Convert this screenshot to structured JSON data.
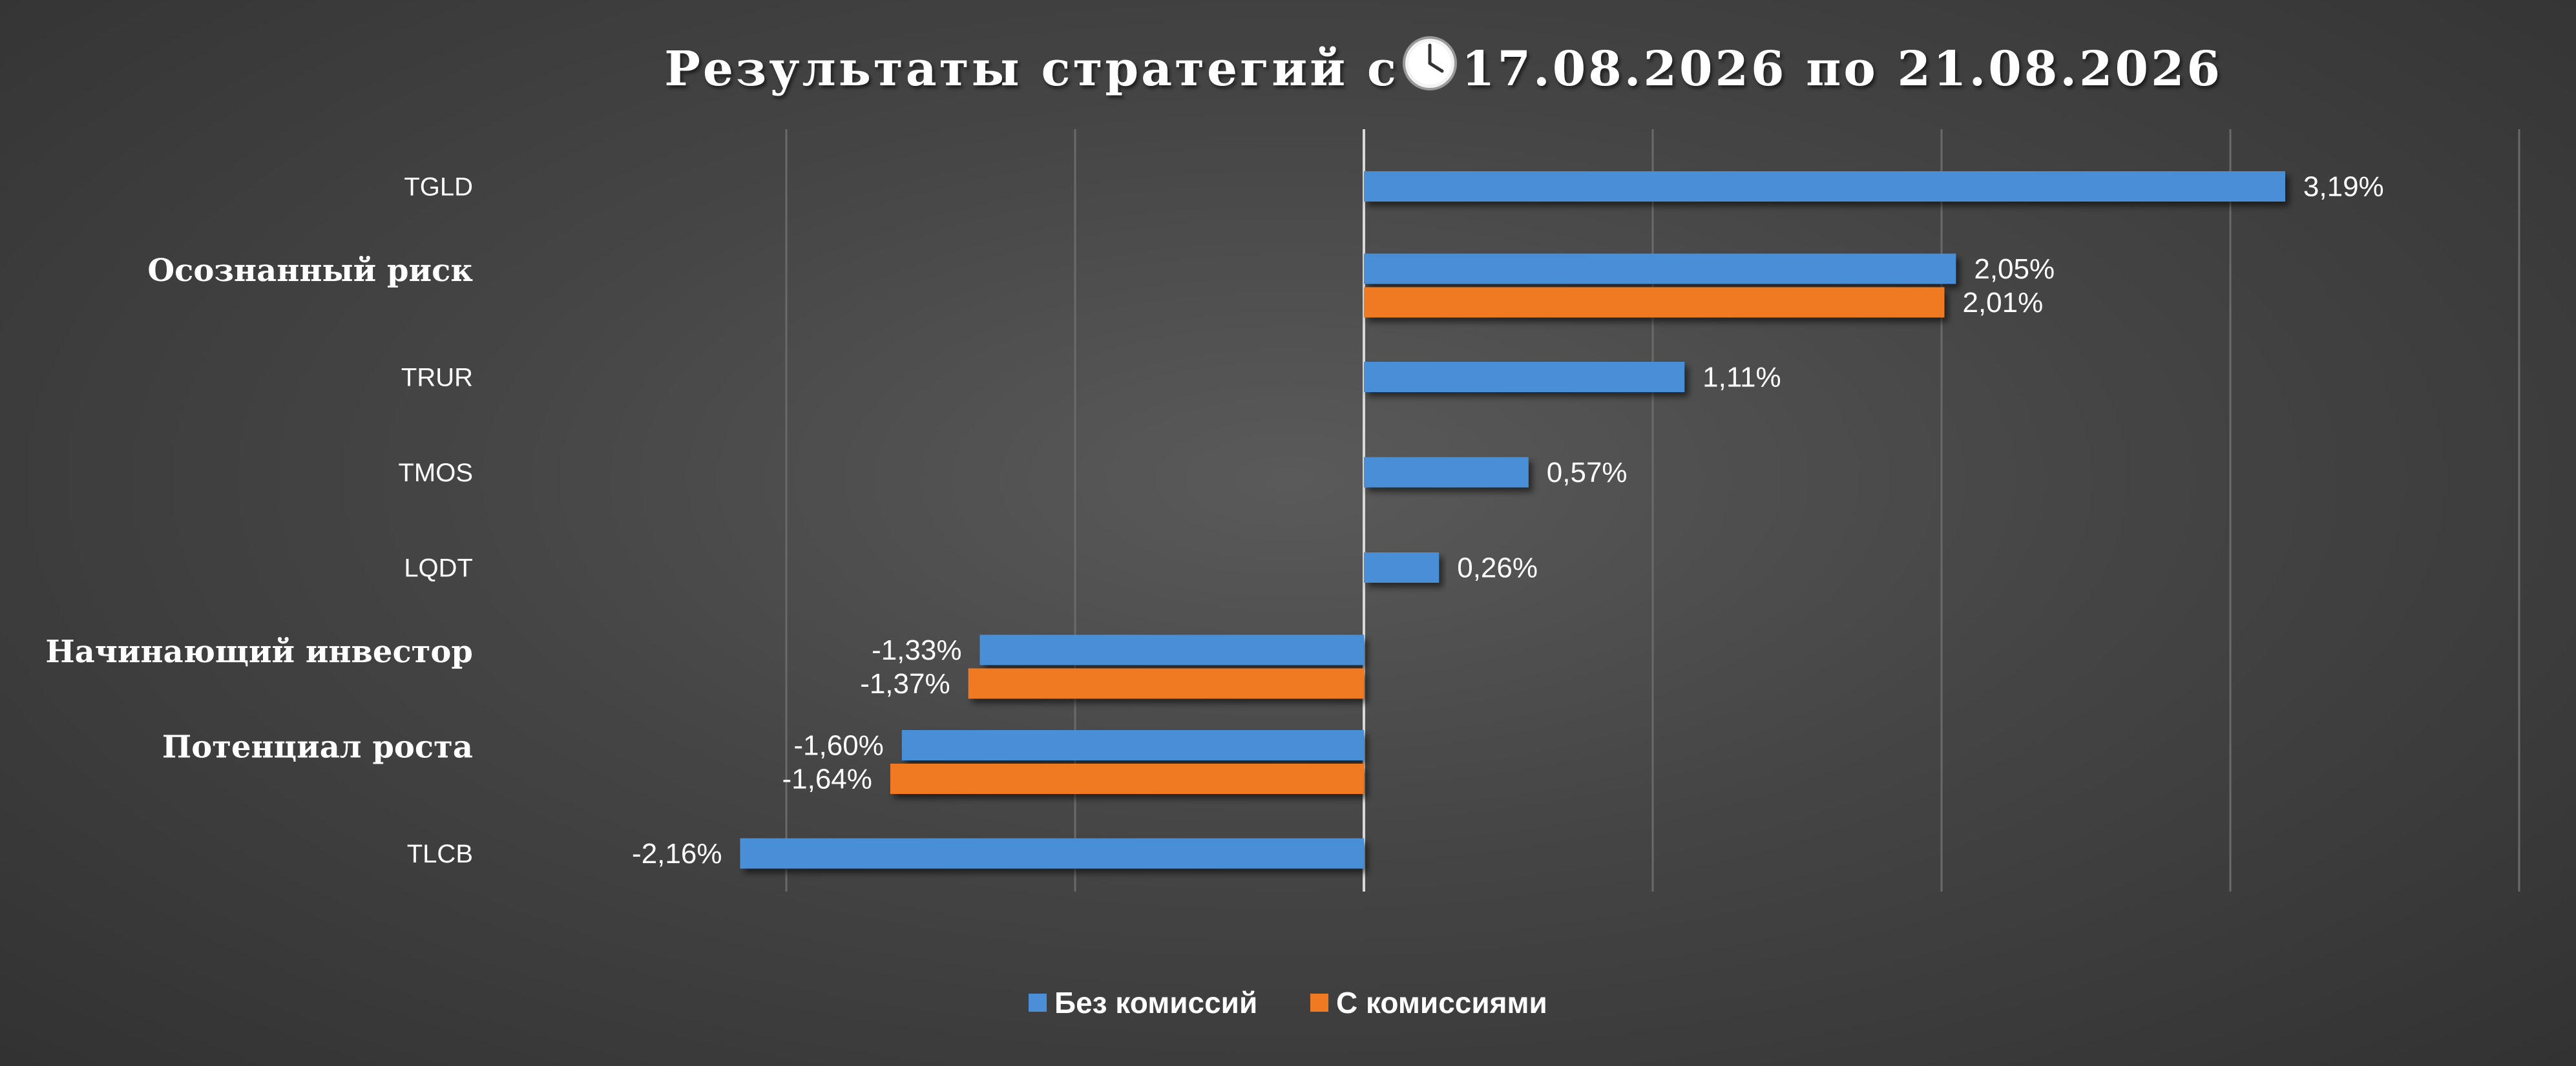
{
  "chart_data": {
    "type": "bar",
    "orientation": "horizontal",
    "title_prefix": "Результаты стратегий с ",
    "title_suffix": "17.08.2026 по 21.08.2026",
    "title_icon": "clock-icon",
    "categories": [
      "TGLD",
      "Осознанный риск",
      "TRUR",
      "TMOS",
      "LQDT",
      "Начинающий инвестор",
      "Потенциал роста ",
      "TLCB"
    ],
    "category_is_strategy": [
      false,
      true,
      false,
      false,
      false,
      true,
      true,
      false
    ],
    "series": [
      {
        "name": "Без комиссий",
        "color": "#4a8fd8",
        "values": [
          3.19,
          2.05,
          1.11,
          0.57,
          0.26,
          -1.33,
          -1.6,
          -2.16
        ],
        "labels": [
          "3,19%",
          "2,05%",
          "1,11%",
          "0,57%",
          "0,26%",
          "-1,33%",
          "-1,60%",
          "-2,16%"
        ]
      },
      {
        "name": "С комиссиями",
        "color": "#f07a22",
        "values": [
          null,
          2.01,
          null,
          null,
          null,
          -1.37,
          -1.64,
          null
        ],
        "labels": [
          null,
          "2,01%",
          null,
          null,
          null,
          "-1,37%",
          "-1,64%",
          null
        ]
      }
    ],
    "xlim": [
      -3.0,
      4.0
    ],
    "grid": true,
    "legend": "bottom-center"
  }
}
